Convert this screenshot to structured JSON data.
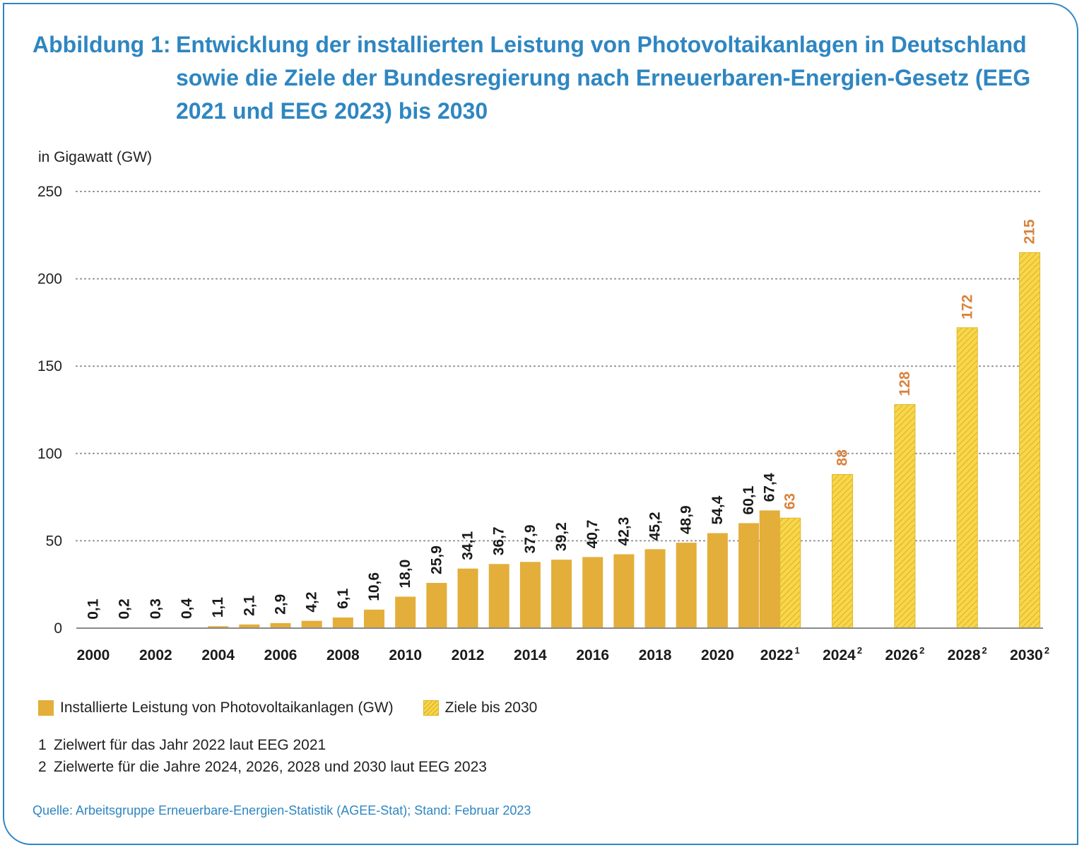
{
  "title": {
    "prefix": "Abbildung 1:",
    "text": "Entwicklung der installierten Leistung von Photovoltaikanlagen in Deutschland sowie die Ziele der Bundesregierung nach Erneuerbaren-Energien-Gesetz (EEG 2021 und EEG 2023) bis 2030"
  },
  "colors": {
    "accent": "#2e86c1",
    "installed_bar": "#e3ae3a",
    "target_bar": "#f6d84a",
    "target_label": "#d9823b"
  },
  "chart_data": {
    "type": "bar",
    "ylabel": "in Gigawatt (GW)",
    "ylim": [
      0,
      250
    ],
    "yticks": [
      0,
      50,
      100,
      150,
      200,
      250
    ],
    "grid": true,
    "xtick_labels": [
      {
        "year": 2000,
        "label": "2000",
        "sup": ""
      },
      {
        "year": 2002,
        "label": "2002",
        "sup": ""
      },
      {
        "year": 2004,
        "label": "2004",
        "sup": ""
      },
      {
        "year": 2006,
        "label": "2006",
        "sup": ""
      },
      {
        "year": 2008,
        "label": "2008",
        "sup": ""
      },
      {
        "year": 2010,
        "label": "2010",
        "sup": ""
      },
      {
        "year": 2012,
        "label": "2012",
        "sup": ""
      },
      {
        "year": 2014,
        "label": "2014",
        "sup": ""
      },
      {
        "year": 2016,
        "label": "2016",
        "sup": ""
      },
      {
        "year": 2018,
        "label": "2018",
        "sup": ""
      },
      {
        "year": 2020,
        "label": "2020",
        "sup": ""
      },
      {
        "year": 2022,
        "label": "2022",
        "sup": "1"
      },
      {
        "year": 2024,
        "label": "2024",
        "sup": "2"
      },
      {
        "year": 2026,
        "label": "2026",
        "sup": "2"
      },
      {
        "year": 2028,
        "label": "2028",
        "sup": "2"
      },
      {
        "year": 2030,
        "label": "2030",
        "sup": "2"
      }
    ],
    "series": [
      {
        "name": "Installierte Leistung von Photovoltaikanlagen (GW)",
        "style": "solid",
        "points": [
          {
            "x": 2000,
            "value": 0.1,
            "label": "0,1"
          },
          {
            "x": 2001,
            "value": 0.2,
            "label": "0,2"
          },
          {
            "x": 2002,
            "value": 0.3,
            "label": "0,3"
          },
          {
            "x": 2003,
            "value": 0.4,
            "label": "0,4"
          },
          {
            "x": 2004,
            "value": 1.1,
            "label": "1,1"
          },
          {
            "x": 2005,
            "value": 2.1,
            "label": "2,1"
          },
          {
            "x": 2006,
            "value": 2.9,
            "label": "2,9"
          },
          {
            "x": 2007,
            "value": 4.2,
            "label": "4,2"
          },
          {
            "x": 2008,
            "value": 6.1,
            "label": "6,1"
          },
          {
            "x": 2009,
            "value": 10.6,
            "label": "10,6"
          },
          {
            "x": 2010,
            "value": 18.0,
            "label": "18,0"
          },
          {
            "x": 2011,
            "value": 25.9,
            "label": "25,9"
          },
          {
            "x": 2012,
            "value": 34.1,
            "label": "34,1"
          },
          {
            "x": 2013,
            "value": 36.7,
            "label": "36,7"
          },
          {
            "x": 2014,
            "value": 37.9,
            "label": "37,9"
          },
          {
            "x": 2015,
            "value": 39.2,
            "label": "39,2"
          },
          {
            "x": 2016,
            "value": 40.7,
            "label": "40,7"
          },
          {
            "x": 2017,
            "value": 42.3,
            "label": "42,3"
          },
          {
            "x": 2018,
            "value": 45.2,
            "label": "45,2"
          },
          {
            "x": 2019,
            "value": 48.9,
            "label": "48,9"
          },
          {
            "x": 2020,
            "value": 54.4,
            "label": "54,4"
          },
          {
            "x": 2021,
            "value": 60.1,
            "label": "60,1"
          },
          {
            "x": 2022,
            "value": 67.4,
            "label": "67,4"
          }
        ]
      },
      {
        "name": "Ziele bis 2030",
        "style": "hatched",
        "points": [
          {
            "x": 2022,
            "value": 63,
            "label": "63"
          },
          {
            "x": 2024,
            "value": 88,
            "label": "88"
          },
          {
            "x": 2026,
            "value": 128,
            "label": "128"
          },
          {
            "x": 2028,
            "value": 172,
            "label": "172"
          },
          {
            "x": 2030,
            "value": 215,
            "label": "215"
          }
        ]
      }
    ]
  },
  "footnotes": [
    {
      "num": "1",
      "text": "Zielwert für das Jahr 2022 laut EEG 2021"
    },
    {
      "num": "2",
      "text": "Zielwerte für die Jahre 2024, 2026, 2028 und 2030 laut EEG 2023"
    }
  ],
  "source": "Quelle: Arbeitsgruppe Erneuerbare-Energien-Statistik (AGEE-Stat); Stand: Februar 2023"
}
